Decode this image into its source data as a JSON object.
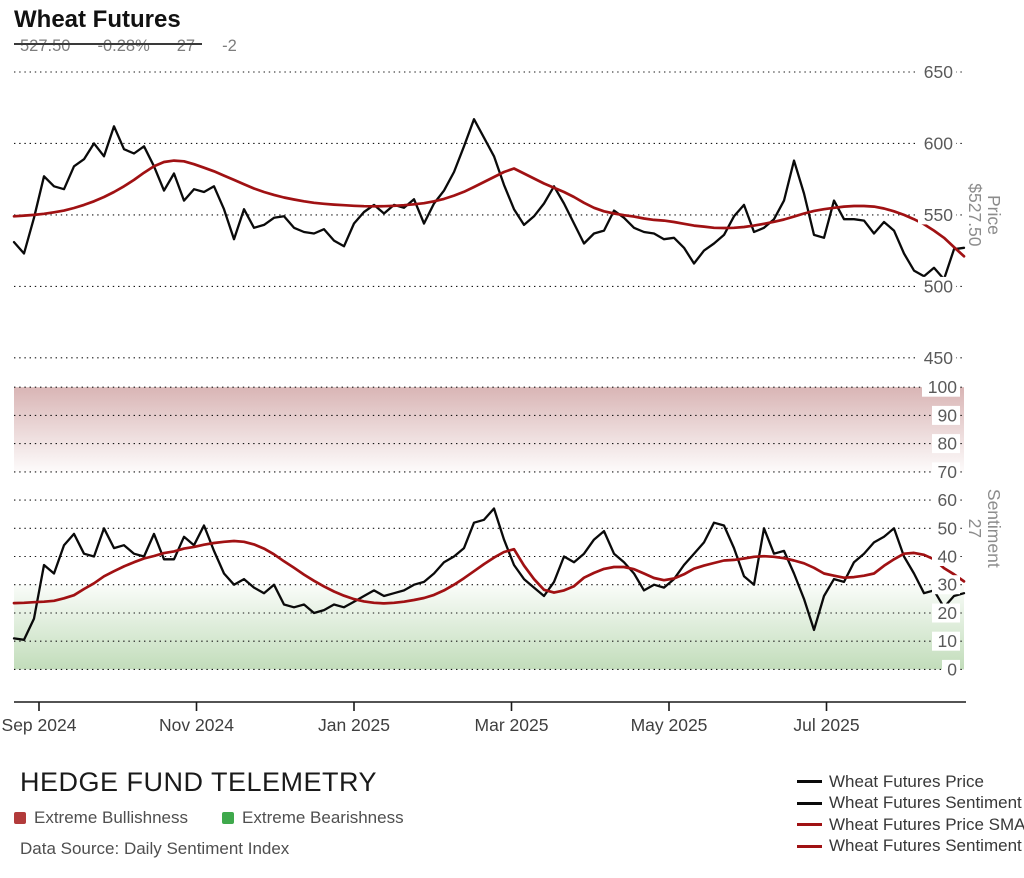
{
  "header": {
    "title": "Wheat Futures",
    "price": "527.50",
    "price_change": "-0.28%",
    "sentiment": "27",
    "sentiment_change": "-2"
  },
  "footer": {
    "brand": "HEDGE FUND TELEMETRY",
    "zones": [
      {
        "label": "Extreme Bullishness",
        "color": "#b23b3b"
      },
      {
        "label": "Extreme Bearishness",
        "color": "#3fa94c"
      }
    ],
    "source": "Data Source: Daily Sentiment Index"
  },
  "legend": {
    "position": "bottom-right",
    "items": [
      {
        "label": "Wheat Futures Price",
        "color": "#0a0a0a"
      },
      {
        "label": "Wheat Futures Sentiment",
        "color": "#0a0a0a"
      },
      {
        "label": "Wheat Futures Price SMA",
        "color": "#a01113"
      },
      {
        "label": "Wheat Futures Sentiment SMA",
        "color": "#a01113"
      }
    ]
  },
  "chart_data": {
    "type": "line",
    "title": "Wheat Futures",
    "grid": "dotted",
    "x_ticks": [
      {
        "label": "Sep 2024",
        "f": 0.0263
      },
      {
        "label": "Nov 2024",
        "f": 0.1921
      },
      {
        "label": "Jan 2025",
        "f": 0.3579
      },
      {
        "label": "Mar 2025",
        "f": 0.5237
      },
      {
        "label": "May 2025",
        "f": 0.6895
      },
      {
        "label": "Jul 2025",
        "f": 0.8553
      }
    ],
    "panels": [
      {
        "id": "price",
        "axis_title": [
          "Price",
          "$527.50"
        ],
        "ylim": [
          450,
          650
        ],
        "y_ticks": [
          450,
          500,
          550,
          600,
          650
        ],
        "series": [
          {
            "name": "Wheat Futures Price",
            "color": "#0a0a0a",
            "width": 2.3,
            "values": [
              531,
              523,
              548,
              577,
              570,
              568,
              584,
              589,
              600,
              591,
              612,
              596,
              593,
              598,
              584,
              567,
              579,
              560,
              568,
              566,
              570,
              554,
              533,
              554,
              541,
              543,
              548,
              549,
              541,
              538,
              537,
              540,
              532,
              528,
              544,
              552,
              557,
              551,
              557,
              555,
              561,
              544,
              558,
              567,
              580,
              598,
              617,
              604,
              591,
              571,
              554,
              543,
              549,
              558,
              570,
              558,
              544,
              530,
              537,
              539,
              553,
              548,
              541,
              538,
              537,
              533,
              534,
              527,
              516,
              525,
              530,
              536,
              549,
              557,
              538,
              541,
              547,
              560,
              588,
              565,
              536,
              534,
              560,
              547,
              547,
              546,
              537,
              545,
              539,
              523,
              511,
              507,
              513,
              505,
              526,
              527
            ]
          },
          {
            "name": "Wheat Futures Price SMA",
            "color": "#a01113",
            "width": 2.7,
            "values": [
              549,
              549.5,
              550,
              550.8,
              551.8,
              553,
              554.8,
              557,
              559.5,
              562.5,
              566,
              570,
              574.5,
              579.5,
              584,
              587,
              588,
              587.5,
              585.5,
              583,
              580.5,
              577.5,
              574.5,
              571.5,
              568.5,
              566,
              564,
              562.2,
              560.8,
              559.5,
              558.5,
              557.8,
              557.2,
              556.8,
              556.4,
              556.1,
              556,
              556.1,
              556.4,
              556.8,
              557.4,
              558.2,
              559.5,
              561.2,
              563.5,
              566.2,
              569.5,
              573,
              576.5,
              580,
              582.5,
              579,
              575.5,
              572,
              569,
              566,
              562.5,
              558.5,
              555,
              552.5,
              551,
              549.8,
              548.8,
              547.5,
              546.5,
              546,
              545,
              543.8,
              542.5,
              541.8,
              541,
              540.8,
              541,
              541.5,
              542.5,
              543.8,
              545.2,
              546.8,
              548.8,
              551,
              552.8,
              554,
              555,
              555.8,
              556.2,
              556.2,
              555.8,
              554.5,
              552.5,
              550,
              547,
              543.5,
              539,
              534,
              527.5,
              521
            ]
          }
        ]
      },
      {
        "id": "sentiment",
        "axis_title": [
          "Sentiment",
          "27"
        ],
        "ylim": [
          0,
          100
        ],
        "y_ticks": [
          0,
          10,
          20,
          30,
          40,
          50,
          60,
          70,
          80,
          90,
          100
        ],
        "bands": [
          {
            "label": "Extreme Bullishness",
            "from": 70,
            "to": 100,
            "top_color": "rgba(155,60,60,0.38)",
            "bottom_color": "rgba(155,60,60,0.02)"
          },
          {
            "label": "Extreme Bearishness",
            "from": 0,
            "to": 30,
            "top_color": "rgba(85,160,65,0.03)",
            "bottom_color": "rgba(85,160,65,0.36)"
          }
        ],
        "series": [
          {
            "name": "Wheat Futures Sentiment",
            "color": "#0a0a0a",
            "width": 2.3,
            "values": [
              11,
              10.5,
              18,
              37,
              34,
              44,
              48,
              41,
              40,
              50,
              43,
              44,
              41,
              40,
              48,
              39,
              39,
              47,
              44,
              51,
              42,
              34,
              30,
              32,
              29,
              27,
              30,
              23,
              22,
              23,
              20,
              21,
              23,
              22,
              24,
              26,
              28,
              26,
              27,
              28,
              30,
              31,
              34,
              38,
              40,
              43,
              52,
              53,
              57,
              46,
              37,
              32,
              29,
              26,
              31,
              40,
              38,
              41,
              46,
              49,
              41,
              38,
              34,
              28,
              30,
              29,
              32,
              37,
              41,
              45,
              52,
              51,
              43,
              33,
              30,
              50,
              41,
              42,
              34,
              25,
              14,
              26,
              32,
              31,
              38,
              41,
              45,
              47,
              50,
              40,
              34,
              27,
              28,
              22,
              26,
              27
            ]
          },
          {
            "name": "Wheat Futures Sentiment SMA",
            "color": "#a01113",
            "width": 2.7,
            "values": [
              23.5,
              23.6,
              23.8,
              24,
              24.3,
              25.2,
              26.3,
              28.5,
              30.5,
              33,
              34.8,
              36.5,
              38,
              39.3,
              40.2,
              41.2,
              41.8,
              42.8,
              43.4,
              44.2,
              44.8,
              45.2,
              45.5,
              45.2,
              44.3,
              42.8,
              40.8,
              38.3,
              36,
              33.6,
              31.4,
              29.4,
              27.6,
              26.1,
              24.9,
              24.1,
              23.6,
              23.4,
              23.6,
              24,
              24.6,
              25.3,
              26.4,
              28,
              30,
              32.3,
              34.8,
              37.3,
              39.6,
              41.6,
              42.6,
              36.8,
              32,
              28.2,
              27.2,
              28,
              29.5,
              32.5,
              34.2,
              35.6,
              36.3,
              36.3,
              35.5,
              34,
              32.4,
              31.6,
              32.2,
              33.7,
              35.7,
              36.8,
              37.7,
              38.6,
              38.8,
              39.3,
              39.9,
              40.1,
              39.9,
              39.4,
              38.6,
              37.6,
              36,
              34,
              33.2,
              32.5,
              32.7,
              33.2,
              34,
              36.7,
              39,
              41,
              41.3,
              40.6,
              39,
              35.9,
              33.7,
              31.2
            ]
          }
        ]
      }
    ]
  }
}
